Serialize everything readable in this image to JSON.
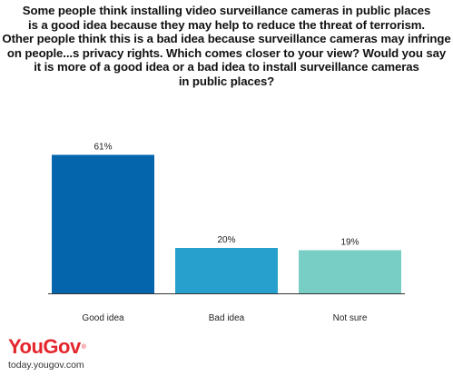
{
  "title": "Some people think installing video surveillance cameras in public places\nis a good idea because they may help to reduce the threat of terrorism.\nOther people think this is a bad idea because surveillance cameras may infringe\non people...s privacy rights. Which comes closer to your view? Would you say\nit is more of a good idea or a bad idea to install surveillance cameras\nin public places?",
  "logo": {
    "name": "YouGov",
    "mark": "®",
    "url": "today.yougov.com"
  },
  "chart_data": {
    "type": "bar",
    "categories": [
      "Good idea",
      "Bad idea",
      "Not sure"
    ],
    "values": [
      61,
      20,
      19
    ],
    "value_labels": [
      "61%",
      "20%",
      "19%"
    ],
    "unit": "%",
    "xlabel": "",
    "ylabel": "",
    "ylim": [
      0,
      70
    ],
    "grid": false,
    "legend": "none",
    "colors": [
      "#0565ac",
      "#28a0cd",
      "#78cec5"
    ],
    "baseline_color": "#333333"
  }
}
